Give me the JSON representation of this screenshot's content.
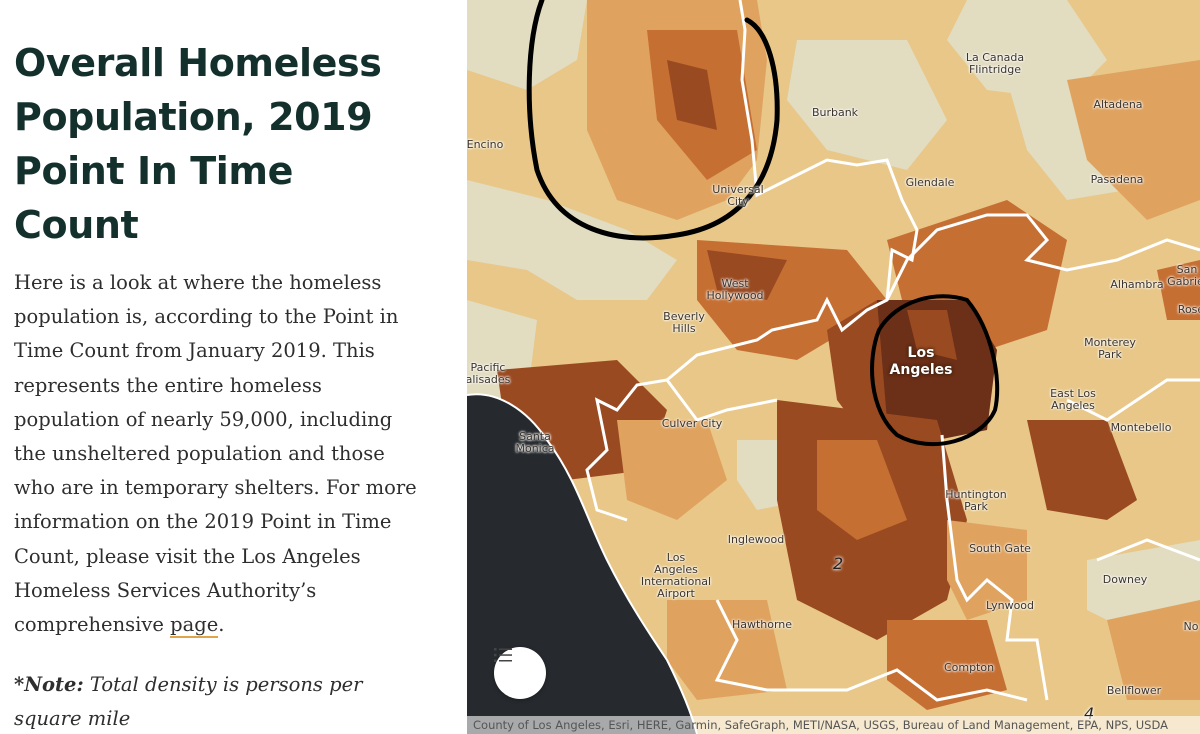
{
  "sidebar": {
    "title": "Overall Homeless Population, 2019 Point In Time Count",
    "body_before_link": "Here is a look at where the homeless population is, according to the Point in Time Count from January 2019. This represents the entire homeless population of nearly 59,000, including the unsheltered population and those who are in temporary shelters. For more information on the 2019 Point in Time Count, please visit the Los Angeles Homeless Services Authority’s comprehensive ",
    "link_text": "page",
    "body_after_link": ".",
    "note_label": "*Note:",
    "note_text": " Total density is persons per square mile"
  },
  "map": {
    "places": {
      "la_canada": "La Canada\nFlintridge",
      "burbank": "Burbank",
      "altadena": "Altadena",
      "encino": "Encino",
      "universal_city": "Universal\nCity",
      "glendale": "Glendale",
      "pasadena": "Pasadena",
      "san_gabriel": "San\nGabriel",
      "alhambra": "Alhambra",
      "rosemead": "Rose",
      "west_hollywood": "West\nHollywood",
      "beverly_hills": "Beverly\nHills",
      "los_angeles": "Los\nAngeles",
      "monterey_park": "Monterey\nPark",
      "pacific_palisades": "Pacific\nalisades",
      "east_los_angeles": "East Los\nAngeles",
      "culver_city": "Culver City",
      "santa_monica": "Santa\nMonica",
      "montebello": "Montebello",
      "huntington_park": "Huntington\nPark",
      "inglewood": "Inglewood",
      "south_gate": "South Gate",
      "lax": "Los\nAngeles\nInternational\nAirport",
      "downey": "Downey",
      "norwalk": "No",
      "lynwood": "Lynwood",
      "hawthorne": "Hawthorne",
      "compton": "Compton",
      "bellflower": "Bellflower"
    },
    "district_labels": {
      "d2": "2",
      "d4": "4"
    },
    "attribution": "County of Los Angeles, Esri, HERE, Garmin, SafeGraph, METI/NASA, USGS, Bureau of Land Management, EPA, NPS, USDA",
    "legend_icon": "list-icon",
    "colors": {
      "ocean": "#262a2e",
      "lightest": "#e2dcc0",
      "light": "#e8c788",
      "mid": "#dfa35f",
      "dark": "#c66f33",
      "darker": "#9a4a21",
      "darkest": "#6c2f17",
      "boundary": "#ffffff",
      "marker": "#000000"
    }
  }
}
